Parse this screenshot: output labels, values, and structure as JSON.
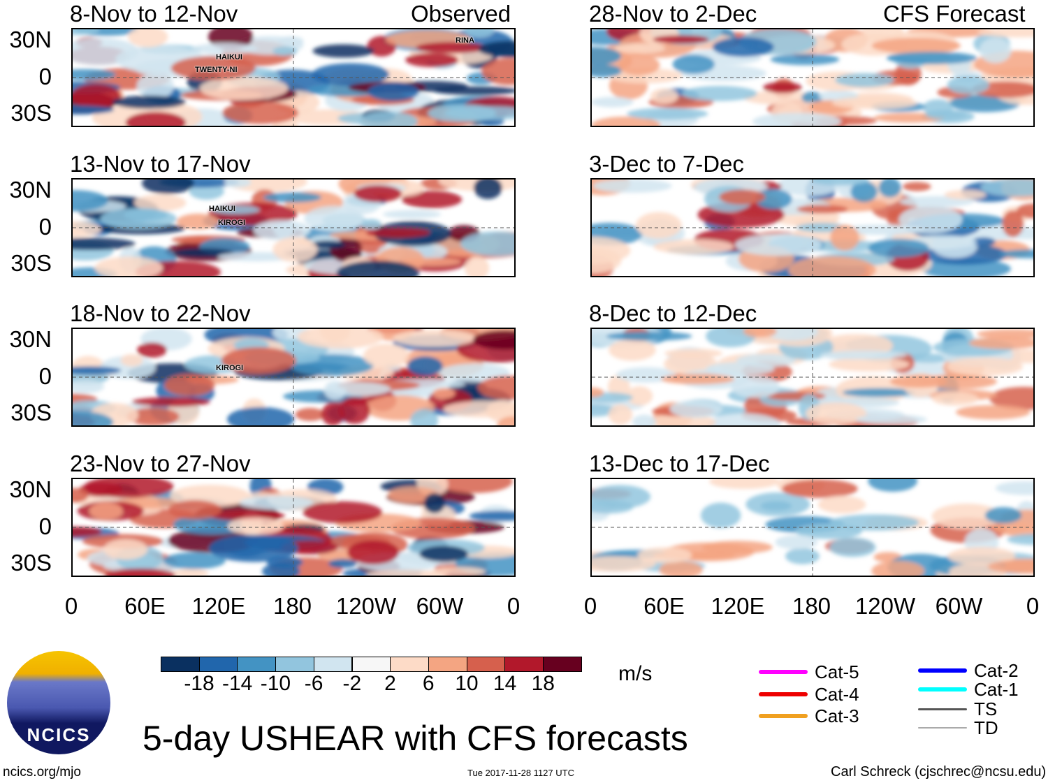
{
  "title": "5-day USHEAR with CFS forecasts",
  "left_header": "Observed",
  "right_header": "CFS Forecast",
  "lat_labels": [
    "30N",
    "0",
    "30S"
  ],
  "lon_labels": [
    "0",
    "60E",
    "120E",
    "180",
    "120W",
    "60W",
    "0"
  ],
  "panels_left": [
    {
      "title": "8-Nov to 12-Nov",
      "storms": [
        "TWENTY-NI",
        "HAIKUI",
        "RINA"
      ]
    },
    {
      "title": "13-Nov to 17-Nov",
      "storms": [
        "HAIKUI",
        "KIROGI"
      ]
    },
    {
      "title": "18-Nov to 22-Nov",
      "storms": [
        "KIROGI"
      ]
    },
    {
      "title": "23-Nov to 27-Nov",
      "storms": []
    }
  ],
  "panels_right": [
    {
      "title": "28-Nov to 2-Dec"
    },
    {
      "title": "3-Dec to 7-Dec"
    },
    {
      "title": "8-Dec to 12-Dec"
    },
    {
      "title": "13-Dec to 17-Dec"
    }
  ],
  "colorbar": {
    "colors": [
      "#0a3060",
      "#2166ac",
      "#4393c3",
      "#92c5de",
      "#d1e5f0",
      "#f7f7f7",
      "#fddbc7",
      "#f4a582",
      "#d6604d",
      "#b2182b",
      "#67001f"
    ],
    "ticks": [
      "-18",
      "-14",
      "-10",
      "-6",
      "-2",
      "2",
      "6",
      "10",
      "14",
      "18"
    ],
    "units": "m/s"
  },
  "legend": [
    {
      "label": "Cat-5",
      "color": "#ff00ff"
    },
    {
      "label": "Cat-4",
      "color": "#ee0000"
    },
    {
      "label": "Cat-3",
      "color": "#f0a020"
    },
    {
      "label": "Cat-2",
      "color": "#0000ff"
    },
    {
      "label": "Cat-1",
      "color": "#00ffff"
    },
    {
      "label": "TS",
      "color": "#555555"
    },
    {
      "label": "TD",
      "color": "#aaaaaa"
    }
  ],
  "logo": {
    "text": "NCICS"
  },
  "footer": {
    "url": "ncics.org/mjo",
    "timestamp": "Tue 2017-11-28 1127 UTC",
    "author": "Carl Schreck (cjschrec@ncsu.edu)"
  }
}
